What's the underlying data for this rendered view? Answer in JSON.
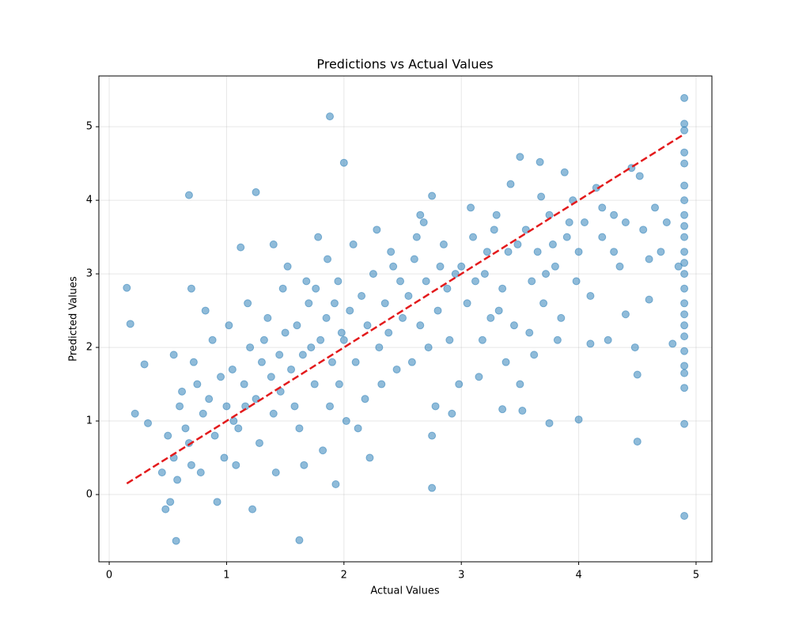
{
  "chart_data": {
    "type": "scatter",
    "title": "Predictions vs Actual Values",
    "x_label": "Actual Values",
    "y_label": "Predicted Values",
    "xlim": [
      -0.088,
      5.135
    ],
    "ylim": [
      -0.914,
      5.69
    ],
    "xticks": [
      0,
      1,
      2,
      3,
      4,
      5
    ],
    "yticks": [
      0,
      1,
      2,
      3,
      4,
      5
    ],
    "grid": true,
    "color": "#1f77b4",
    "reference_line": {
      "x": [
        0.15,
        4.9
      ],
      "y": [
        0.15,
        4.9
      ],
      "color": "#e31a1c"
    },
    "x": [
      0.15,
      0.18,
      0.68,
      1.25,
      1.88,
      2.0,
      0.57,
      1.62,
      2.75,
      1.93,
      3.5,
      3.67,
      4.9,
      4.9,
      4.5,
      4.0,
      3.75,
      3.35,
      0.22,
      0.3,
      0.33,
      0.45,
      0.5,
      0.55,
      0.6,
      0.52,
      0.65,
      0.7,
      0.75,
      0.58,
      0.48,
      0.62,
      0.68,
      0.8,
      0.72,
      0.78,
      0.85,
      0.9,
      0.95,
      0.88,
      0.98,
      0.82,
      0.92,
      0.55,
      0.7,
      1.0,
      1.05,
      1.1,
      1.15,
      1.2,
      1.25,
      1.3,
      1.35,
      1.4,
      1.45,
      1.5,
      1.02,
      1.08,
      1.18,
      1.28,
      1.38,
      1.48,
      1.12,
      1.22,
      1.42,
      1.32,
      1.46,
      1.4,
      1.06,
      1.16,
      1.55,
      1.6,
      1.65,
      1.7,
      1.75,
      1.8,
      1.85,
      1.9,
      1.95,
      1.58,
      1.68,
      1.78,
      1.88,
      1.98,
      1.62,
      1.72,
      1.82,
      1.92,
      1.52,
      1.66,
      1.76,
      1.86,
      1.96,
      2.0,
      2.05,
      2.1,
      2.15,
      2.2,
      2.25,
      2.3,
      2.35,
      2.4,
      2.45,
      2.08,
      2.18,
      2.28,
      2.38,
      2.48,
      2.12,
      2.22,
      2.32,
      2.42,
      2.02,
      2.5,
      2.55,
      2.6,
      2.65,
      2.7,
      2.75,
      2.8,
      2.85,
      2.9,
      2.95,
      2.58,
      2.68,
      2.78,
      2.88,
      2.98,
      2.62,
      2.72,
      2.82,
      2.92,
      2.75,
      2.65,
      3.0,
      3.05,
      3.1,
      3.15,
      3.2,
      3.25,
      3.3,
      3.35,
      3.4,
      3.45,
      3.08,
      3.18,
      3.28,
      3.38,
      3.48,
      3.12,
      3.22,
      3.42,
      3.5,
      3.32,
      3.55,
      3.6,
      3.65,
      3.7,
      3.75,
      3.8,
      3.85,
      3.9,
      3.95,
      3.58,
      3.68,
      3.78,
      3.88,
      3.98,
      3.62,
      3.72,
      3.82,
      3.92,
      3.52,
      4.0,
      4.05,
      4.1,
      4.15,
      4.2,
      4.25,
      4.3,
      4.35,
      4.4,
      4.45,
      4.1,
      4.2,
      4.3,
      4.4,
      4.48,
      4.52,
      4.55,
      4.6,
      4.65,
      4.7,
      4.75,
      4.8,
      4.85,
      4.5,
      4.6,
      4.9,
      4.9,
      4.9,
      4.9,
      4.9,
      4.9,
      4.9,
      4.9,
      4.9,
      4.9,
      4.9,
      4.9,
      4.9,
      4.9,
      4.9,
      4.9,
      4.9,
      4.9,
      4.9,
      4.9,
      4.9,
      4.9
    ],
    "y": [
      2.81,
      2.32,
      4.07,
      4.11,
      5.14,
      4.51,
      -0.63,
      -0.62,
      0.09,
      0.14,
      4.59,
      4.52,
      5.39,
      -0.29,
      0.72,
      1.02,
      0.97,
      1.16,
      1.1,
      1.77,
      0.97,
      0.3,
      0.8,
      0.5,
      1.2,
      -0.1,
      0.9,
      0.4,
      1.5,
      0.2,
      -0.2,
      1.4,
      0.7,
      1.1,
      1.8,
      0.3,
      1.3,
      0.8,
      1.6,
      2.1,
      0.5,
      2.5,
      -0.1,
      1.9,
      2.8,
      1.2,
      1.7,
      0.9,
      1.5,
      2.0,
      1.3,
      1.8,
      2.4,
      1.1,
      1.9,
      2.2,
      2.3,
      0.4,
      2.6,
      0.7,
      1.6,
      2.8,
      3.36,
      -0.2,
      0.3,
      2.1,
      1.4,
      3.4,
      1.0,
      1.2,
      1.7,
      2.3,
      1.9,
      2.6,
      1.5,
      2.1,
      2.4,
      1.8,
      2.9,
      1.2,
      2.9,
      3.5,
      1.2,
      2.2,
      0.9,
      2.0,
      0.6,
      2.6,
      3.1,
      0.4,
      2.8,
      3.2,
      1.5,
      2.1,
      2.5,
      1.8,
      2.7,
      2.3,
      3.0,
      2.0,
      2.6,
      3.3,
      1.7,
      3.4,
      1.3,
      3.6,
      2.2,
      2.9,
      0.9,
      0.5,
      1.5,
      3.1,
      1.0,
      2.4,
      2.7,
      3.2,
      2.3,
      2.9,
      4.06,
      2.5,
      3.4,
      2.1,
      3.0,
      1.8,
      3.7,
      1.2,
      2.8,
      1.5,
      3.5,
      2.0,
      3.1,
      1.1,
      0.8,
      3.8,
      3.1,
      2.6,
      3.5,
      1.6,
      3.0,
      2.4,
      3.8,
      2.8,
      3.3,
      2.3,
      3.9,
      2.1,
      3.6,
      1.8,
      3.4,
      2.9,
      3.3,
      4.22,
      1.5,
      2.5,
      3.6,
      2.9,
      3.3,
      2.6,
      3.8,
      3.1,
      2.4,
      3.5,
      4.0,
      2.2,
      4.05,
      3.4,
      4.38,
      2.9,
      1.9,
      3.0,
      2.1,
      3.7,
      1.14,
      3.3,
      3.7,
      2.7,
      4.17,
      3.5,
      2.1,
      3.8,
      3.1,
      2.45,
      4.44,
      2.05,
      3.9,
      3.3,
      3.7,
      2.0,
      4.33,
      3.6,
      2.65,
      3.9,
      3.3,
      3.7,
      2.05,
      3.1,
      1.63,
      3.2,
      4.2,
      4.0,
      3.8,
      3.5,
      3.3,
      3.0,
      2.8,
      2.6,
      2.3,
      4.5,
      4.65,
      4.95,
      5.04,
      1.95,
      1.75,
      1.65,
      1.45,
      0.96,
      2.15,
      3.65,
      3.15,
      2.45
    ]
  }
}
